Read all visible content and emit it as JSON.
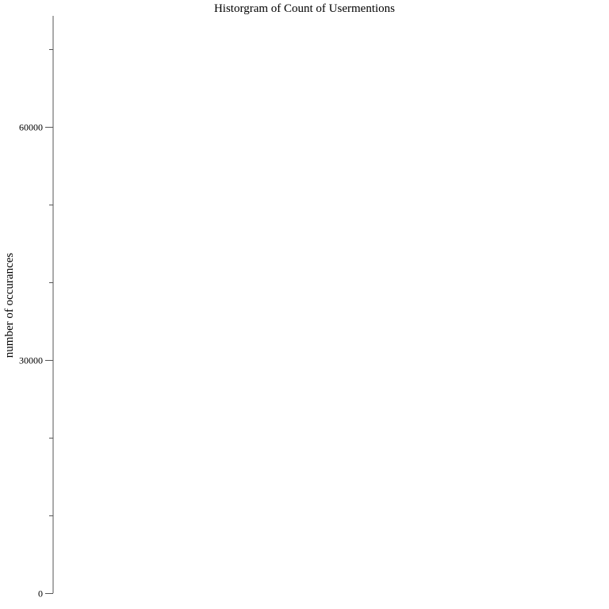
{
  "chart_data": {
    "type": "bar",
    "title": "Historgram of Count of Usermentions",
    "xlabel": "",
    "ylabel": "number of occurances",
    "ylim": [
      0,
      74000
    ],
    "y_ticks": [
      {
        "value": 0,
        "label": "0"
      },
      {
        "value": 30000,
        "label": "30000"
      },
      {
        "value": 60000,
        "label": "60000"
      }
    ],
    "y_minor_ticks": [
      10000,
      20000,
      40000,
      50000,
      70000
    ],
    "categories": [],
    "values": [],
    "grid": false,
    "legend": "none"
  }
}
